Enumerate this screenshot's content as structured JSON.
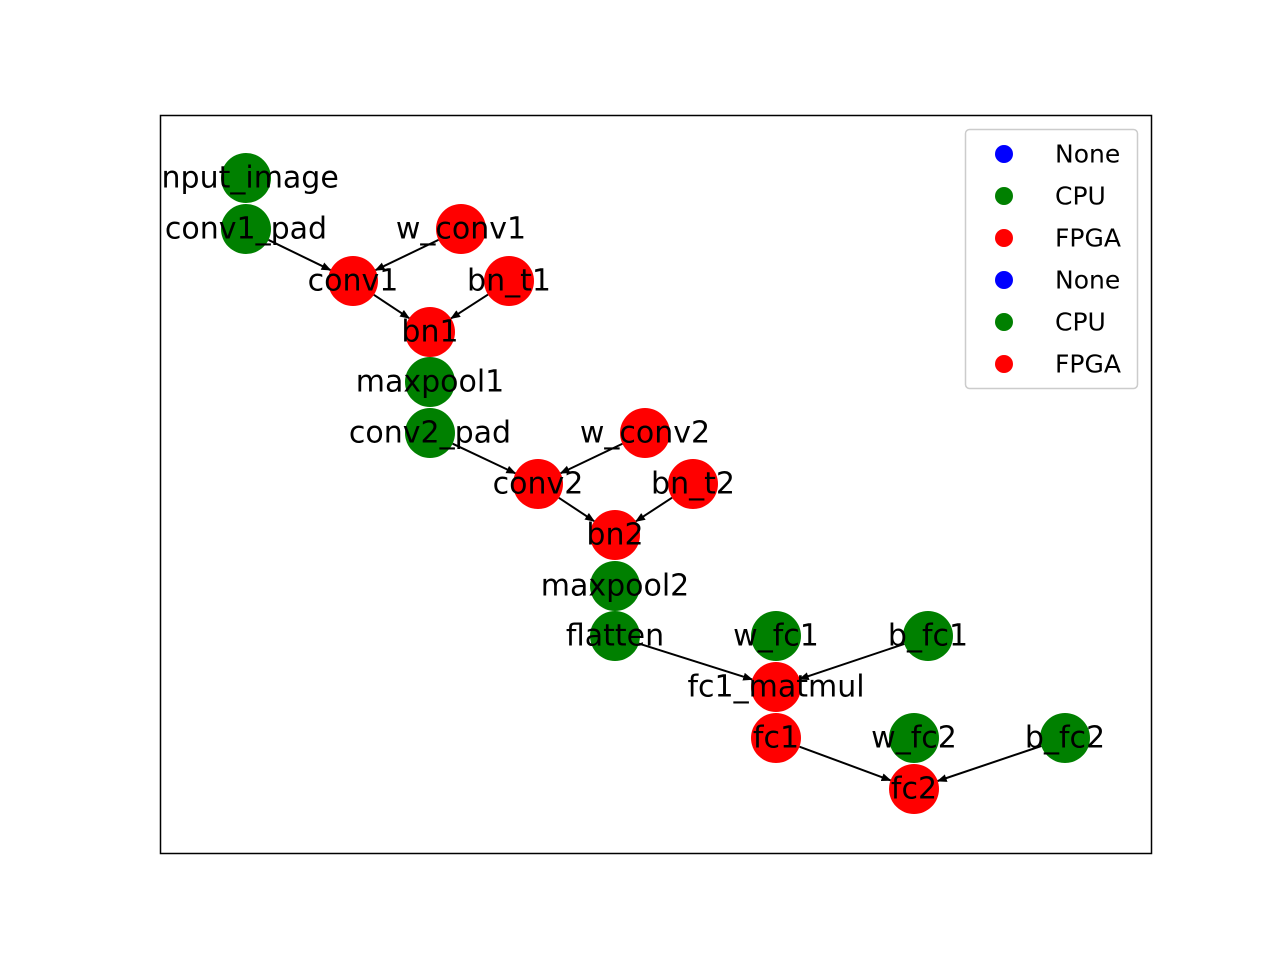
{
  "graph": {
    "colors": {
      "None": "#0000ff",
      "CPU": "#008000",
      "FPGA": "#ff0000",
      "edge": "#000000",
      "frame": "#000000"
    },
    "nodes": [
      {
        "id": "input_image",
        "label": "input_image",
        "device": "CPU"
      },
      {
        "id": "conv1_pad",
        "label": "conv1_pad",
        "device": "CPU"
      },
      {
        "id": "w_conv1",
        "label": "w_conv1",
        "device": "FPGA"
      },
      {
        "id": "conv1",
        "label": "conv1",
        "device": "FPGA"
      },
      {
        "id": "bn_t1",
        "label": "bn_t1",
        "device": "FPGA"
      },
      {
        "id": "bn1",
        "label": "bn1",
        "device": "FPGA"
      },
      {
        "id": "maxpool1",
        "label": "maxpool1",
        "device": "CPU"
      },
      {
        "id": "conv2_pad",
        "label": "conv2_pad",
        "device": "CPU"
      },
      {
        "id": "w_conv2",
        "label": "w_conv2",
        "device": "FPGA"
      },
      {
        "id": "conv2",
        "label": "conv2",
        "device": "FPGA"
      },
      {
        "id": "bn_t2",
        "label": "bn_t2",
        "device": "FPGA"
      },
      {
        "id": "bn2",
        "label": "bn2",
        "device": "FPGA"
      },
      {
        "id": "maxpool2",
        "label": "maxpool2",
        "device": "CPU"
      },
      {
        "id": "flatten",
        "label": "flatten",
        "device": "CPU"
      },
      {
        "id": "w_fc1",
        "label": "w_fc1",
        "device": "CPU"
      },
      {
        "id": "b_fc1",
        "label": "b_fc1",
        "device": "CPU"
      },
      {
        "id": "fc1_matmul",
        "label": "fc1_matmul",
        "device": "FPGA"
      },
      {
        "id": "fc1",
        "label": "fc1",
        "device": "FPGA"
      },
      {
        "id": "w_fc2",
        "label": "w_fc2",
        "device": "CPU"
      },
      {
        "id": "b_fc2",
        "label": "b_fc2",
        "device": "CPU"
      },
      {
        "id": "fc2",
        "label": "fc2",
        "device": "FPGA"
      }
    ],
    "edges": [
      {
        "from": "conv1_pad",
        "to": "conv1"
      },
      {
        "from": "w_conv1",
        "to": "conv1"
      },
      {
        "from": "conv1",
        "to": "bn1"
      },
      {
        "from": "bn_t1",
        "to": "bn1"
      },
      {
        "from": "conv2_pad",
        "to": "conv2"
      },
      {
        "from": "w_conv2",
        "to": "conv2"
      },
      {
        "from": "conv2",
        "to": "bn2"
      },
      {
        "from": "bn_t2",
        "to": "bn2"
      },
      {
        "from": "flatten",
        "to": "fc1_matmul"
      },
      {
        "from": "b_fc1",
        "to": "fc1_matmul"
      },
      {
        "from": "fc1",
        "to": "fc2"
      },
      {
        "from": "b_fc2",
        "to": "fc2"
      }
    ]
  },
  "legend": {
    "entries": [
      {
        "label": "None",
        "device": "None"
      },
      {
        "label": "CPU",
        "device": "CPU"
      },
      {
        "label": "FPGA",
        "device": "FPGA"
      },
      {
        "label": "None",
        "device": "None"
      },
      {
        "label": "CPU",
        "device": "CPU"
      },
      {
        "label": "FPGA",
        "device": "FPGA"
      }
    ]
  }
}
